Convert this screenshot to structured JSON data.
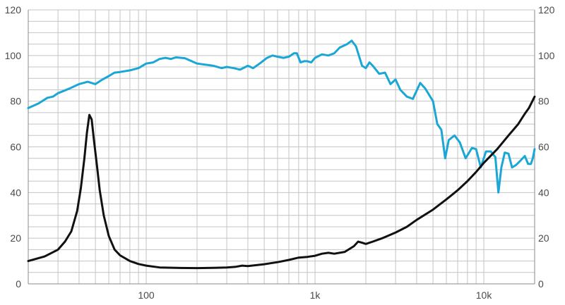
{
  "chart_data": {
    "type": "line",
    "x_scale": "log",
    "xlim": [
      20,
      20000
    ],
    "ylim": [
      0,
      120
    ],
    "grid": true,
    "x_tick_labels": [
      {
        "value": 100,
        "label": "100"
      },
      {
        "value": 1000,
        "label": "1k"
      },
      {
        "value": 10000,
        "label": "10k"
      }
    ],
    "y_ticks_left": [
      "0",
      "20",
      "40",
      "60",
      "80",
      "100",
      "120"
    ],
    "y_ticks_right": [
      "0",
      "20",
      "40",
      "60",
      "80",
      "100",
      "120"
    ],
    "series": [
      {
        "color": "#1aa7d6",
        "points": [
          [
            20,
            77
          ],
          [
            23,
            79
          ],
          [
            26,
            81.5
          ],
          [
            28,
            82
          ],
          [
            30,
            83.5
          ],
          [
            35,
            85.5
          ],
          [
            40,
            87.5
          ],
          [
            45,
            88.5
          ],
          [
            50,
            87.5
          ],
          [
            55,
            89.5
          ],
          [
            60,
            91
          ],
          [
            65,
            92.5
          ],
          [
            70,
            92.8
          ],
          [
            80,
            93.5
          ],
          [
            90,
            94.5
          ],
          [
            100,
            96.5
          ],
          [
            110,
            97
          ],
          [
            120,
            98.5
          ],
          [
            130,
            99
          ],
          [
            140,
            98.5
          ],
          [
            150,
            99.2
          ],
          [
            170,
            98.8
          ],
          [
            200,
            96.5
          ],
          [
            250,
            95.5
          ],
          [
            280,
            94.5
          ],
          [
            300,
            95
          ],
          [
            330,
            94.5
          ],
          [
            360,
            93.8
          ],
          [
            400,
            95.5
          ],
          [
            430,
            94.5
          ],
          [
            470,
            96.5
          ],
          [
            520,
            99
          ],
          [
            560,
            100
          ],
          [
            600,
            99.5
          ],
          [
            650,
            99
          ],
          [
            700,
            99.5
          ],
          [
            750,
            101
          ],
          [
            780,
            101
          ],
          [
            820,
            97
          ],
          [
            860,
            97.5
          ],
          [
            900,
            97.5
          ],
          [
            950,
            97
          ],
          [
            1000,
            99
          ],
          [
            1100,
            100.5
          ],
          [
            1200,
            100
          ],
          [
            1300,
            101
          ],
          [
            1400,
            103.5
          ],
          [
            1550,
            105
          ],
          [
            1650,
            106.5
          ],
          [
            1750,
            104
          ],
          [
            1900,
            95.5
          ],
          [
            2000,
            94.5
          ],
          [
            2100,
            97
          ],
          [
            2200,
            95.5
          ],
          [
            2400,
            92
          ],
          [
            2600,
            92.5
          ],
          [
            2800,
            87.5
          ],
          [
            3000,
            89.5
          ],
          [
            3200,
            85
          ],
          [
            3500,
            82
          ],
          [
            3800,
            81
          ],
          [
            4200,
            88
          ],
          [
            4500,
            85.5
          ],
          [
            5000,
            80
          ],
          [
            5300,
            70
          ],
          [
            5600,
            67.5
          ],
          [
            5900,
            55
          ],
          [
            6200,
            63
          ],
          [
            6700,
            65
          ],
          [
            7200,
            62
          ],
          [
            7800,
            55
          ],
          [
            8500,
            59.5
          ],
          [
            9000,
            59
          ],
          [
            9600,
            51
          ],
          [
            10300,
            58
          ],
          [
            11000,
            58
          ],
          [
            11700,
            55.5
          ],
          [
            12200,
            40
          ],
          [
            12700,
            51
          ],
          [
            13300,
            57.5
          ],
          [
            14000,
            57
          ],
          [
            14700,
            51
          ],
          [
            15500,
            52
          ],
          [
            16500,
            54
          ],
          [
            17500,
            56
          ],
          [
            18300,
            52.5
          ],
          [
            19000,
            52.5
          ],
          [
            19500,
            55
          ],
          [
            20000,
            59
          ]
        ]
      },
      {
        "color": "#111111",
        "points": [
          [
            20,
            10
          ],
          [
            25,
            12
          ],
          [
            30,
            15
          ],
          [
            33,
            18.5
          ],
          [
            36,
            23
          ],
          [
            39,
            32
          ],
          [
            41,
            42
          ],
          [
            43,
            55
          ],
          [
            44.5,
            66
          ],
          [
            46,
            74
          ],
          [
            47.5,
            72
          ],
          [
            49,
            63
          ],
          [
            51,
            52
          ],
          [
            53,
            41
          ],
          [
            56,
            30
          ],
          [
            60,
            21
          ],
          [
            65,
            15
          ],
          [
            70,
            12.5
          ],
          [
            80,
            10
          ],
          [
            90,
            8.7
          ],
          [
            100,
            8
          ],
          [
            120,
            7.2
          ],
          [
            150,
            7
          ],
          [
            200,
            6.9
          ],
          [
            250,
            7
          ],
          [
            300,
            7.2
          ],
          [
            340,
            7.5
          ],
          [
            370,
            8
          ],
          [
            400,
            7.8
          ],
          [
            450,
            8.2
          ],
          [
            500,
            8.6
          ],
          [
            600,
            9.5
          ],
          [
            700,
            10.5
          ],
          [
            800,
            11.5
          ],
          [
            900,
            11.8
          ],
          [
            1000,
            12.3
          ],
          [
            1100,
            13.2
          ],
          [
            1200,
            13.6
          ],
          [
            1300,
            13.2
          ],
          [
            1500,
            14
          ],
          [
            1700,
            16.5
          ],
          [
            1800,
            18.5
          ],
          [
            1900,
            18
          ],
          [
            2000,
            17.5
          ],
          [
            2200,
            18.5
          ],
          [
            2500,
            20
          ],
          [
            3000,
            22.5
          ],
          [
            3500,
            25
          ],
          [
            4000,
            28
          ],
          [
            5000,
            32.5
          ],
          [
            6000,
            37
          ],
          [
            7000,
            41
          ],
          [
            8000,
            45
          ],
          [
            9000,
            49
          ],
          [
            10000,
            53
          ],
          [
            12000,
            59
          ],
          [
            14000,
            65
          ],
          [
            16000,
            70
          ],
          [
            17500,
            74.5
          ],
          [
            18500,
            77
          ],
          [
            20000,
            82
          ]
        ]
      }
    ]
  }
}
